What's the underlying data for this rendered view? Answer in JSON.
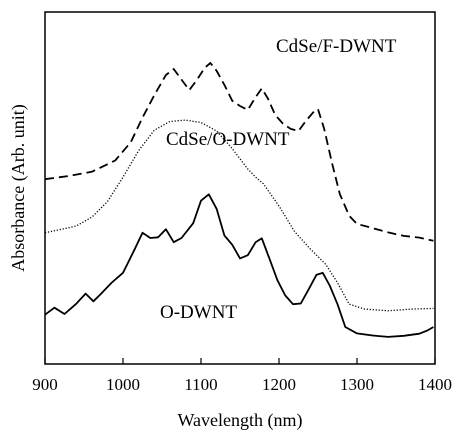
{
  "chart_data": {
    "type": "line",
    "title": "",
    "xlabel": "Wavelength  (nm)",
    "ylabel": "Absorbance  (Arb. unit)",
    "xlim": [
      900,
      1400
    ],
    "ylim": [
      0,
      10
    ],
    "xticks": [
      "900",
      "1000",
      "1100",
      "1200",
      "1300",
      "1400"
    ],
    "y_tick_labels": false,
    "grid": false,
    "legend": "none (series labelled directly on plot)",
    "series": [
      {
        "name": "CdSe/F-DWNT",
        "style": "dashed",
        "color": "#000000",
        "x": [
          900,
          930,
          960,
          990,
          1010,
          1025,
          1040,
          1055,
          1065,
          1075,
          1085,
          1095,
          1105,
          1112,
          1120,
          1130,
          1140,
          1150,
          1160,
          1170,
          1178,
          1186,
          1195,
          1205,
          1215,
          1225,
          1235,
          1245,
          1250,
          1258,
          1268,
          1278,
          1290,
          1300,
          1320,
          1340,
          1360,
          1380,
          1390,
          1398
        ],
        "y": [
          5.25,
          5.34,
          5.46,
          5.78,
          6.3,
          7.0,
          7.63,
          8.21,
          8.38,
          8.08,
          7.78,
          8.08,
          8.42,
          8.55,
          8.33,
          7.93,
          7.48,
          7.33,
          7.22,
          7.58,
          7.83,
          7.53,
          7.08,
          6.83,
          6.68,
          6.62,
          6.92,
          7.18,
          7.24,
          6.68,
          5.71,
          4.83,
          4.21,
          3.98,
          3.86,
          3.74,
          3.64,
          3.59,
          3.54,
          3.5
        ]
      },
      {
        "name": "CdSe/O-DWNT",
        "style": "dotted",
        "color": "#000000",
        "x": [
          900,
          920,
          940,
          960,
          980,
          1000,
          1020,
          1040,
          1060,
          1080,
          1100,
          1120,
          1140,
          1160,
          1170,
          1180,
          1200,
          1220,
          1240,
          1260,
          1275,
          1290,
          1310,
          1340,
          1370,
          1398
        ],
        "y": [
          3.73,
          3.82,
          3.92,
          4.17,
          4.61,
          5.31,
          6.06,
          6.64,
          6.89,
          6.93,
          6.86,
          6.62,
          6.12,
          5.54,
          5.31,
          5.12,
          4.49,
          3.76,
          3.27,
          2.83,
          2.31,
          1.7,
          1.56,
          1.51,
          1.56,
          1.58
        ]
      },
      {
        "name": "O-DWNT",
        "style": "solid",
        "color": "#000000",
        "x": [
          900,
          912,
          925,
          940,
          952,
          962,
          972,
          985,
          1000,
          1015,
          1025,
          1035,
          1045,
          1055,
          1065,
          1075,
          1090,
          1100,
          1110,
          1120,
          1130,
          1140,
          1150,
          1160,
          1170,
          1178,
          1188,
          1198,
          1208,
          1218,
          1228,
          1238,
          1248,
          1256,
          1265,
          1275,
          1285,
          1300,
          1320,
          1340,
          1360,
          1380,
          1390,
          1398
        ],
        "y": [
          1.4,
          1.6,
          1.42,
          1.71,
          2.0,
          1.78,
          2.0,
          2.3,
          2.59,
          3.26,
          3.73,
          3.58,
          3.6,
          3.83,
          3.46,
          3.58,
          4.0,
          4.64,
          4.82,
          4.41,
          3.65,
          3.39,
          3.0,
          3.09,
          3.46,
          3.57,
          2.98,
          2.38,
          1.95,
          1.7,
          1.72,
          2.12,
          2.53,
          2.59,
          2.23,
          1.7,
          1.05,
          0.87,
          0.81,
          0.77,
          0.8,
          0.86,
          0.95,
          1.05
        ]
      }
    ],
    "annotations": [
      "CdSe/F-DWNT",
      "CdSe/O-DWNT",
      "O-DWNT"
    ]
  }
}
